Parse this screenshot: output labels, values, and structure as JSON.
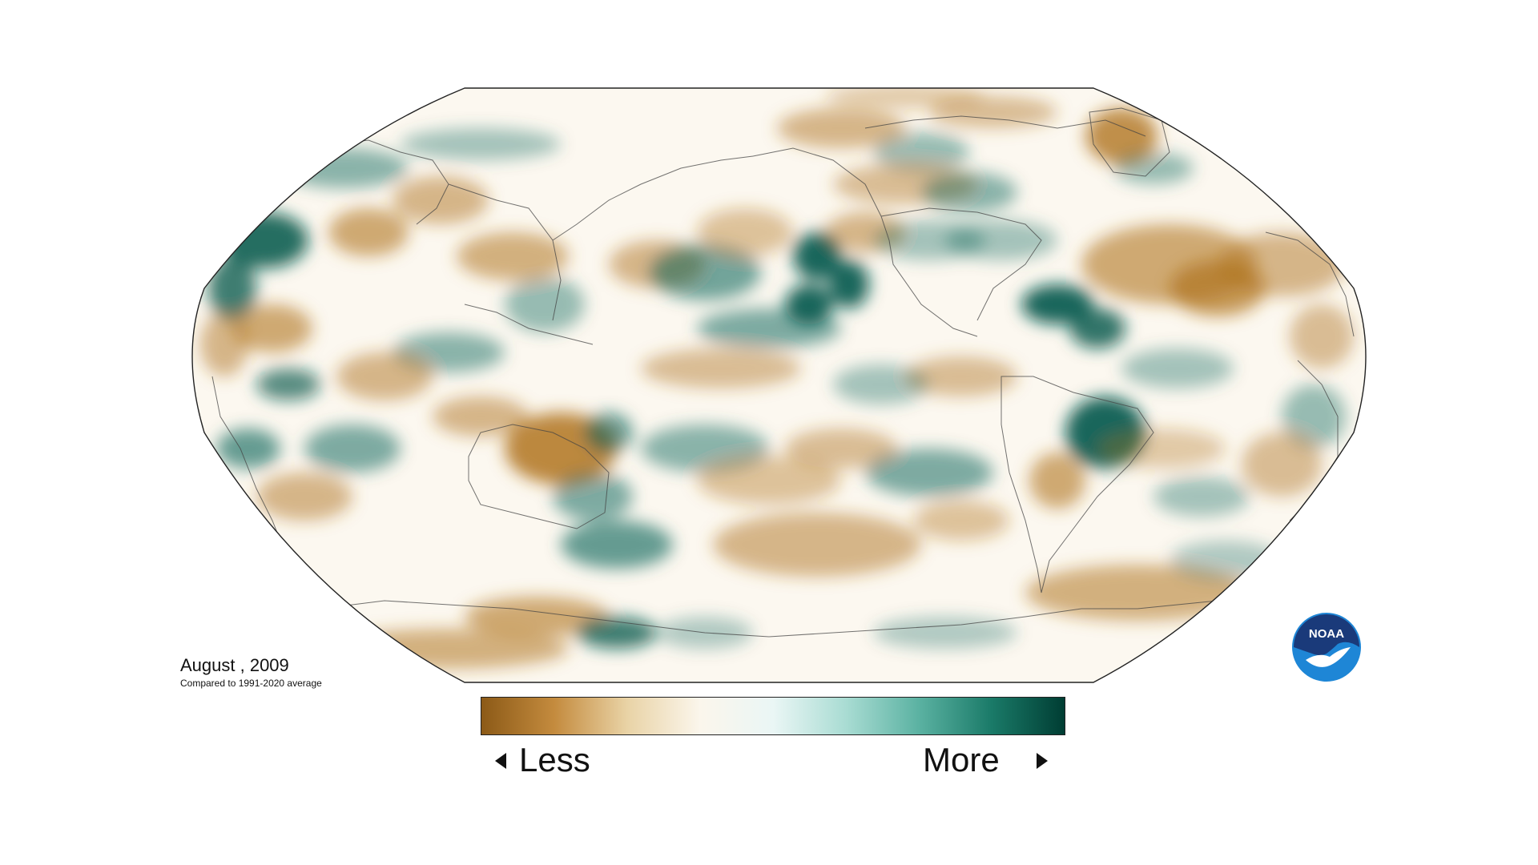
{
  "caption": {
    "title": "August , 2009",
    "subtitle": "Compared to 1991-2020 average"
  },
  "legend": {
    "less_label": "Less",
    "more_label": "More",
    "gradient_colors": [
      "#8c5a17",
      "#c48b3e",
      "#e9d3a6",
      "#fbf6ec",
      "#eaf6f5",
      "#a9dcd3",
      "#5bb2a2",
      "#1a7a68",
      "#003d33"
    ]
  },
  "logo": {
    "text": "NOAA",
    "colors": {
      "dark": "#1a3a7a",
      "light": "#1e86d6"
    }
  },
  "map": {
    "projection": "Robinson",
    "dry_color": "#b0741f",
    "wet_color": "#0a5e52",
    "ocean_neutral": "#ffffff",
    "outline_color": "#333333"
  }
}
